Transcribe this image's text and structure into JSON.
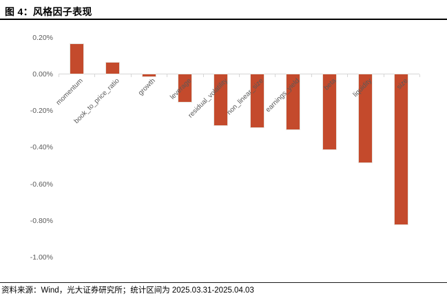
{
  "header": {
    "title": "图 4：风格因子表现"
  },
  "footer": {
    "source": "资料来源：Wind，光大证券研究所；统计区间为 2025.03.31-2025.04.03"
  },
  "chart_data": {
    "type": "bar",
    "title": "图 4：风格因子表现",
    "categories": [
      "momentum",
      "book_to_price_ratio",
      "growth",
      "leverage",
      "residual_volatility",
      "non_linear_size",
      "earnings_yield",
      "beta",
      "liquidity",
      "size"
    ],
    "values": [
      0.16,
      0.06,
      -0.01,
      -0.15,
      -0.28,
      -0.29,
      -0.3,
      -0.41,
      -0.48,
      -0.82
    ],
    "value_unit": "%",
    "xlabel": "",
    "ylabel": "",
    "ylim": [
      -1.0,
      0.2
    ],
    "y_ticks": [
      {
        "label": "0.20%",
        "value": 0.2
      },
      {
        "label": "0.00%",
        "value": 0.0
      },
      {
        "label": "-0.20%",
        "value": -0.2
      },
      {
        "label": "-0.40%",
        "value": -0.4
      },
      {
        "label": "-0.60%",
        "value": -0.6
      },
      {
        "label": "-0.80%",
        "value": -0.8
      },
      {
        "label": "-1.00%",
        "value": -1.0
      }
    ],
    "grid": false,
    "legend": "none",
    "colors": {
      "bar": "#C44A2C",
      "axis": "#D6D6D6",
      "tick_label": "#595959",
      "category_label": "#595959"
    }
  }
}
